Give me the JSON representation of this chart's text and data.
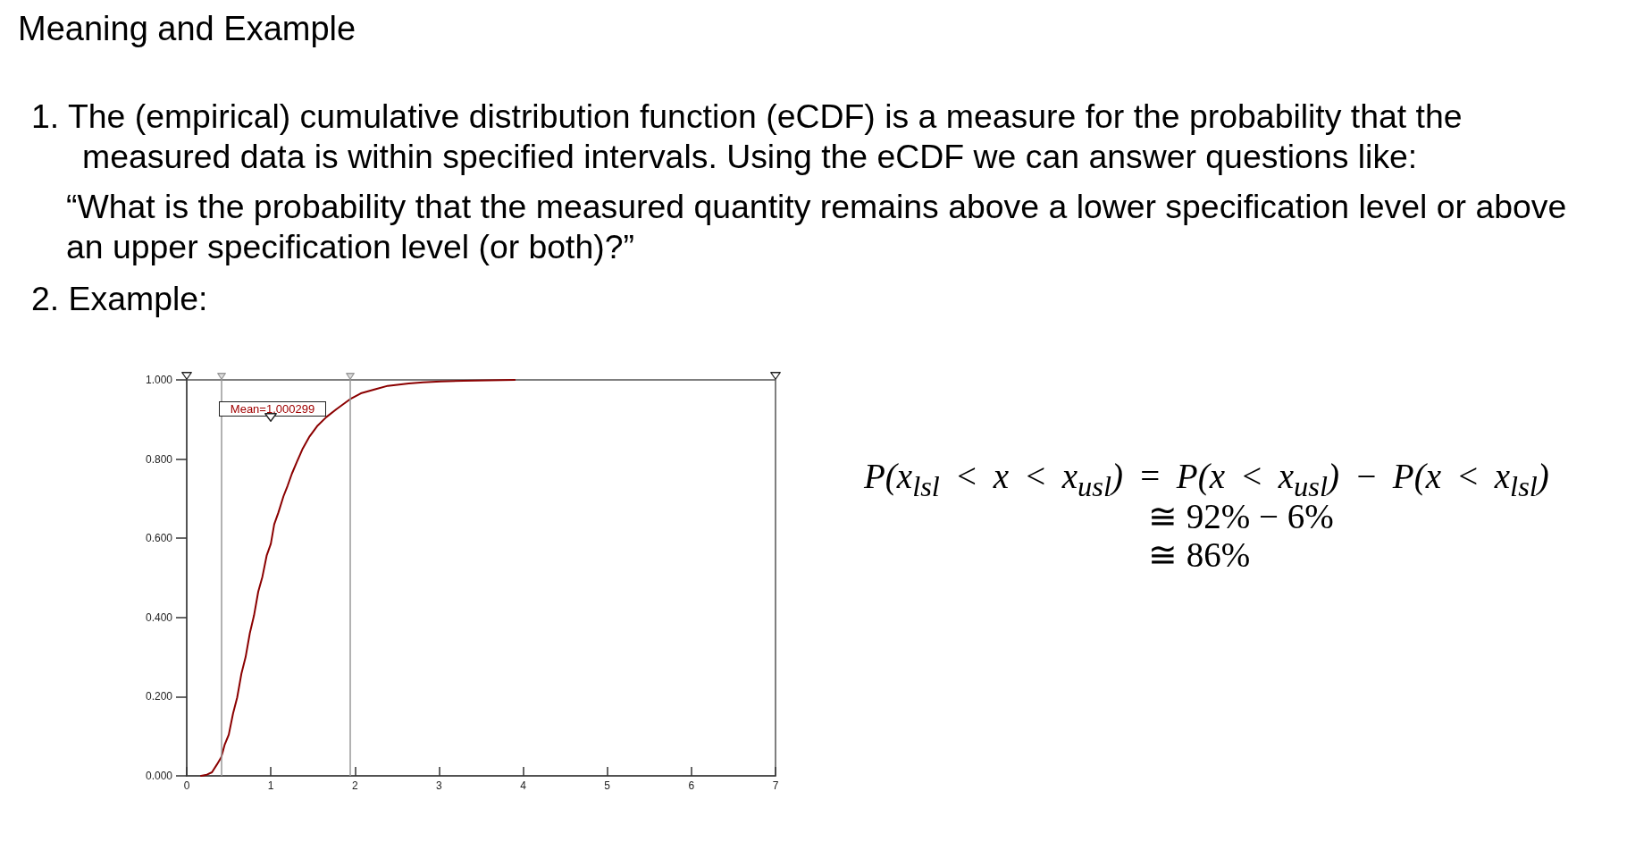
{
  "chart_data": {
    "type": "line",
    "title": "Meaning and Example",
    "annotations": [
      "1. The (empirical) cumulative distribution function (eCDF) is a measure for the probability that the measured data is within specified intervals. Using the eCDF we can answer questions like:",
      "“What is the probability that the measured quantity remains above a lower specification level or above an upper specification level (or both)?”",
      "2. Example:",
      "Mean=1.000299",
      "P(x$_{lsl}$ < x < x$_{usl}$) = P(x < x$_{usl}$) − P(x < x$_{lsl}$)",
      "≅ 92% − 6%",
      "≅ 86%"
    ],
    "x": [
      0.17,
      0.24,
      0.3,
      0.36,
      0.41,
      0.45,
      0.5,
      0.55,
      0.6,
      0.65,
      0.7,
      0.75,
      0.8,
      0.85,
      0.9,
      0.95,
      1.0,
      1.04,
      1.09,
      1.15,
      1.2,
      1.25,
      1.31,
      1.38,
      1.46,
      1.55,
      1.66,
      1.78,
      1.94,
      2.07,
      2.25,
      2.39,
      2.64,
      2.81,
      3.02,
      3.29,
      3.9
    ],
    "values": [
      0,
      0.003,
      0.009,
      0.029,
      0.047,
      0.078,
      0.104,
      0.157,
      0.198,
      0.258,
      0.3,
      0.36,
      0.405,
      0.465,
      0.503,
      0.556,
      0.586,
      0.635,
      0.665,
      0.706,
      0.733,
      0.763,
      0.793,
      0.827,
      0.857,
      0.883,
      0.906,
      0.926,
      0.951,
      0.966,
      0.977,
      0.985,
      0.991,
      0.994,
      0.996,
      0.998,
      1.0
    ],
    "color": "#8b0000",
    "marker": "none",
    "line_style": "solid",
    "xlim": [
      0,
      7
    ],
    "xticks": [
      0,
      1,
      2,
      3,
      4,
      5,
      6,
      7
    ],
    "ylim": [
      0,
      1
    ],
    "yticks": [
      {
        "value": 0,
        "label": "0.000"
      },
      {
        "value": 0.2,
        "label": "0.200"
      },
      {
        "value": 0.4,
        "label": "0.400"
      },
      {
        "value": 0.6,
        "label": "0.600"
      },
      {
        "value": 0.8,
        "label": "0.800"
      },
      {
        "value": 1,
        "label": "1.000"
      }
    ],
    "ref_lines": [
      {
        "axis": "x",
        "value": 0.41,
        "color": "#999999"
      },
      {
        "axis": "x",
        "value": 1.94,
        "color": "#999999"
      }
    ]
  }
}
